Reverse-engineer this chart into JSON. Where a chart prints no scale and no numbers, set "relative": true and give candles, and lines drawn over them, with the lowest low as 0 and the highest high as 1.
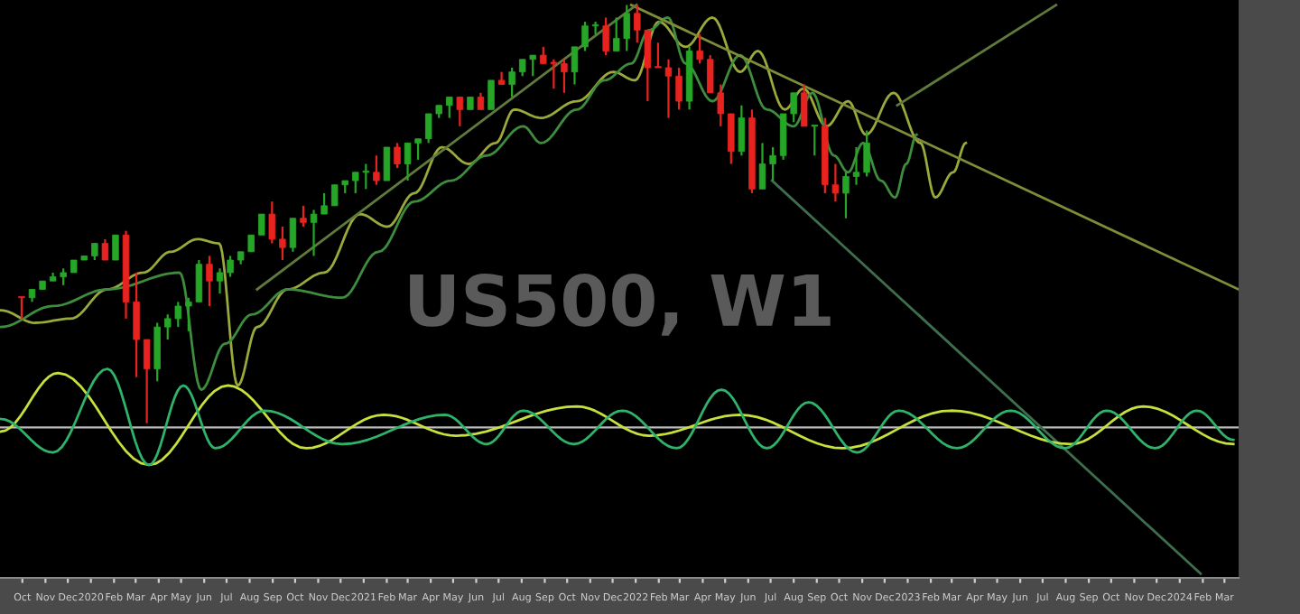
{
  "chart_data": {
    "type": "candlestick",
    "title": "US500, W1",
    "relative": true,
    "grid": false,
    "legend": false,
    "tick_labels": "x",
    "xlim": [
      "2019-09-01",
      "2024-03-20"
    ],
    "xticks": [
      {
        "value": "2019-10-01",
        "label": "Oct"
      },
      {
        "value": "2019-11-01",
        "label": "Nov"
      },
      {
        "value": "2019-12-01",
        "label": "Dec"
      },
      {
        "value": "2020-01-01",
        "label": "2020"
      },
      {
        "value": "2020-02-01",
        "label": "Feb"
      },
      {
        "value": "2020-03-01",
        "label": "Mar"
      },
      {
        "value": "2020-04-01",
        "label": "Apr"
      },
      {
        "value": "2020-05-01",
        "label": "May"
      },
      {
        "value": "2020-06-01",
        "label": "Jun"
      },
      {
        "value": "2020-07-01",
        "label": "Jul"
      },
      {
        "value": "2020-08-01",
        "label": "Aug"
      },
      {
        "value": "2020-09-01",
        "label": "Sep"
      },
      {
        "value": "2020-10-01",
        "label": "Oct"
      },
      {
        "value": "2020-11-01",
        "label": "Nov"
      },
      {
        "value": "2020-12-01",
        "label": "Dec"
      },
      {
        "value": "2021-01-01",
        "label": "2021"
      },
      {
        "value": "2021-02-01",
        "label": "Feb"
      },
      {
        "value": "2021-03-01",
        "label": "Mar"
      },
      {
        "value": "2021-04-01",
        "label": "Apr"
      },
      {
        "value": "2021-05-01",
        "label": "May"
      },
      {
        "value": "2021-06-01",
        "label": "Jun"
      },
      {
        "value": "2021-07-01",
        "label": "Jul"
      },
      {
        "value": "2021-08-01",
        "label": "Aug"
      },
      {
        "value": "2021-09-01",
        "label": "Sep"
      },
      {
        "value": "2021-10-01",
        "label": "Oct"
      },
      {
        "value": "2021-11-01",
        "label": "Nov"
      },
      {
        "value": "2021-12-01",
        "label": "Dec"
      },
      {
        "value": "2022-01-01",
        "label": "2022"
      },
      {
        "value": "2022-02-01",
        "label": "Feb"
      },
      {
        "value": "2022-03-01",
        "label": "Mar"
      },
      {
        "value": "2022-04-01",
        "label": "Apr"
      },
      {
        "value": "2022-05-01",
        "label": "May"
      },
      {
        "value": "2022-06-01",
        "label": "Jun"
      },
      {
        "value": "2022-07-01",
        "label": "Jul"
      },
      {
        "value": "2022-08-01",
        "label": "Aug"
      },
      {
        "value": "2022-09-01",
        "label": "Sep"
      },
      {
        "value": "2022-10-01",
        "label": "Oct"
      },
      {
        "value": "2022-11-01",
        "label": "Nov"
      },
      {
        "value": "2022-12-01",
        "label": "Dec"
      },
      {
        "value": "2023-01-01",
        "label": "2023"
      },
      {
        "value": "2023-02-01",
        "label": "Feb"
      },
      {
        "value": "2023-03-01",
        "label": "Mar"
      },
      {
        "value": "2023-04-01",
        "label": "Apr"
      },
      {
        "value": "2023-05-01",
        "label": "May"
      },
      {
        "value": "2023-06-01",
        "label": "Jun"
      },
      {
        "value": "2023-07-01",
        "label": "Jul"
      },
      {
        "value": "2023-08-01",
        "label": "Aug"
      },
      {
        "value": "2023-09-01",
        "label": "Sep"
      },
      {
        "value": "2023-10-01",
        "label": "Oct"
      },
      {
        "value": "2023-11-01",
        "label": "Nov"
      },
      {
        "value": "2023-12-01",
        "label": "Dec"
      },
      {
        "value": "2024-01-01",
        "label": "2024"
      },
      {
        "value": "2024-02-01",
        "label": "Feb"
      },
      {
        "value": "2024-03-01",
        "label": "Mar"
      }
    ],
    "x": [
      "2019-09-30",
      "2019-10-14",
      "2019-10-28",
      "2019-11-11",
      "2019-11-25",
      "2019-12-09",
      "2019-12-23",
      "2020-01-06",
      "2020-01-20",
      "2020-02-03",
      "2020-02-17",
      "2020-03-02",
      "2020-03-16",
      "2020-03-30",
      "2020-04-13",
      "2020-04-27",
      "2020-05-11",
      "2020-05-25",
      "2020-06-08",
      "2020-06-22",
      "2020-07-06",
      "2020-07-20",
      "2020-08-03",
      "2020-08-17",
      "2020-08-31",
      "2020-09-14",
      "2020-09-28",
      "2020-10-12",
      "2020-10-26",
      "2020-11-09",
      "2020-11-23",
      "2020-12-07",
      "2020-12-21",
      "2021-01-04",
      "2021-01-18",
      "2021-02-01",
      "2021-02-15",
      "2021-03-01",
      "2021-03-15",
      "2021-03-29",
      "2021-04-12",
      "2021-04-26",
      "2021-05-10",
      "2021-05-24",
      "2021-06-07",
      "2021-06-21",
      "2021-07-05",
      "2021-07-19",
      "2021-08-02",
      "2021-08-16",
      "2021-08-30",
      "2021-09-13",
      "2021-09-27",
      "2021-10-11",
      "2021-10-25",
      "2021-11-08",
      "2021-11-22",
      "2021-12-06",
      "2021-12-20",
      "2022-01-03",
      "2022-01-17",
      "2022-01-31",
      "2022-02-14",
      "2022-02-28",
      "2022-03-14",
      "2022-03-28",
      "2022-04-11",
      "2022-04-25",
      "2022-05-09",
      "2022-05-23",
      "2022-06-06",
      "2022-06-20",
      "2022-07-04",
      "2022-07-18",
      "2022-08-01",
      "2022-08-15",
      "2022-08-29",
      "2022-09-12",
      "2022-09-26",
      "2022-10-10",
      "2022-10-24",
      "2022-11-07"
    ],
    "ohlc": [
      [
        0.3,
        0.3,
        0.25,
        0.3
      ],
      [
        0.3,
        0.32,
        0.29,
        0.32
      ],
      [
        0.32,
        0.34,
        0.32,
        0.34
      ],
      [
        0.34,
        0.36,
        0.34,
        0.35
      ],
      [
        0.35,
        0.37,
        0.33,
        0.36
      ],
      [
        0.36,
        0.39,
        0.36,
        0.39
      ],
      [
        0.39,
        0.4,
        0.39,
        0.4
      ],
      [
        0.4,
        0.43,
        0.39,
        0.43
      ],
      [
        0.43,
        0.44,
        0.39,
        0.39
      ],
      [
        0.39,
        0.45,
        0.39,
        0.45
      ],
      [
        0.45,
        0.46,
        0.25,
        0.29
      ],
      [
        0.29,
        0.36,
        0.11,
        0.2
      ],
      [
        0.2,
        0.2,
        0.0,
        0.13
      ],
      [
        0.13,
        0.24,
        0.1,
        0.23
      ],
      [
        0.23,
        0.26,
        0.2,
        0.25
      ],
      [
        0.25,
        0.29,
        0.23,
        0.28
      ],
      [
        0.28,
        0.3,
        0.22,
        0.29
      ],
      [
        0.29,
        0.39,
        0.29,
        0.38
      ],
      [
        0.38,
        0.4,
        0.28,
        0.34
      ],
      [
        0.34,
        0.37,
        0.31,
        0.36
      ],
      [
        0.36,
        0.4,
        0.35,
        0.39
      ],
      [
        0.39,
        0.41,
        0.38,
        0.41
      ],
      [
        0.41,
        0.45,
        0.41,
        0.45
      ],
      [
        0.45,
        0.5,
        0.45,
        0.5
      ],
      [
        0.5,
        0.53,
        0.43,
        0.44
      ],
      [
        0.44,
        0.47,
        0.39,
        0.42
      ],
      [
        0.42,
        0.49,
        0.41,
        0.49
      ],
      [
        0.49,
        0.52,
        0.47,
        0.48
      ],
      [
        0.48,
        0.51,
        0.4,
        0.5
      ],
      [
        0.5,
        0.55,
        0.5,
        0.52
      ],
      [
        0.52,
        0.57,
        0.52,
        0.57
      ],
      [
        0.57,
        0.58,
        0.55,
        0.58
      ],
      [
        0.58,
        0.6,
        0.55,
        0.6
      ],
      [
        0.6,
        0.62,
        0.56,
        0.6
      ],
      [
        0.6,
        0.64,
        0.57,
        0.58
      ],
      [
        0.58,
        0.66,
        0.58,
        0.66
      ],
      [
        0.66,
        0.67,
        0.61,
        0.62
      ],
      [
        0.62,
        0.67,
        0.58,
        0.67
      ],
      [
        0.67,
        0.68,
        0.63,
        0.68
      ],
      [
        0.68,
        0.74,
        0.67,
        0.74
      ],
      [
        0.74,
        0.76,
        0.73,
        0.76
      ],
      [
        0.76,
        0.78,
        0.73,
        0.78
      ],
      [
        0.78,
        0.78,
        0.71,
        0.75
      ],
      [
        0.75,
        0.78,
        0.75,
        0.78
      ],
      [
        0.78,
        0.79,
        0.75,
        0.75
      ],
      [
        0.75,
        0.82,
        0.75,
        0.82
      ],
      [
        0.82,
        0.84,
        0.81,
        0.81
      ],
      [
        0.81,
        0.85,
        0.78,
        0.84
      ],
      [
        0.84,
        0.87,
        0.83,
        0.87
      ],
      [
        0.87,
        0.88,
        0.83,
        0.88
      ],
      [
        0.88,
        0.9,
        0.86,
        0.86
      ],
      [
        0.86,
        0.87,
        0.8,
        0.86
      ],
      [
        0.86,
        0.87,
        0.79,
        0.84
      ],
      [
        0.84,
        0.9,
        0.81,
        0.9
      ],
      [
        0.9,
        0.96,
        0.89,
        0.95
      ],
      [
        0.95,
        0.96,
        0.93,
        0.95
      ],
      [
        0.95,
        0.97,
        0.88,
        0.89
      ],
      [
        0.89,
        0.97,
        0.89,
        0.92
      ],
      [
        0.92,
        1.0,
        0.89,
        0.98
      ],
      [
        0.98,
        1.0,
        0.91,
        0.94
      ],
      [
        0.94,
        0.94,
        0.77,
        0.85
      ],
      [
        0.85,
        0.91,
        0.85,
        0.85
      ],
      [
        0.85,
        0.87,
        0.73,
        0.83
      ],
      [
        0.83,
        0.85,
        0.75,
        0.77
      ],
      [
        0.77,
        0.9,
        0.75,
        0.89
      ],
      [
        0.89,
        0.93,
        0.86,
        0.87
      ],
      [
        0.87,
        0.88,
        0.79,
        0.79
      ],
      [
        0.79,
        0.81,
        0.71,
        0.74
      ],
      [
        0.74,
        0.74,
        0.62,
        0.65
      ],
      [
        0.65,
        0.76,
        0.64,
        0.73
      ],
      [
        0.73,
        0.75,
        0.55,
        0.56
      ],
      [
        0.56,
        0.67,
        0.56,
        0.62
      ],
      [
        0.62,
        0.66,
        0.58,
        0.64
      ],
      [
        0.64,
        0.74,
        0.63,
        0.74
      ],
      [
        0.74,
        0.79,
        0.72,
        0.79
      ],
      [
        0.79,
        0.81,
        0.71,
        0.71
      ],
      [
        0.71,
        0.71,
        0.64,
        0.71
      ],
      [
        0.71,
        0.73,
        0.55,
        0.57
      ],
      [
        0.57,
        0.62,
        0.53,
        0.55
      ],
      [
        0.55,
        0.6,
        0.49,
        0.59
      ],
      [
        0.59,
        0.66,
        0.57,
        0.6
      ],
      [
        0.6,
        0.7,
        0.59,
        0.67
      ]
    ],
    "colors": [
      "#e8231f",
      "#26a626",
      "#26a626",
      "#26a626",
      "#26a626",
      "#26a626",
      "#26a626",
      "#26a626",
      "#e8231f",
      "#26a626",
      "#e8231f",
      "#e8231f",
      "#e8231f",
      "#26a626",
      "#26a626",
      "#26a626",
      "#26a626",
      "#26a626",
      "#e8231f",
      "#26a626",
      "#26a626",
      "#26a626",
      "#26a626",
      "#26a626",
      "#e8231f",
      "#e8231f",
      "#26a626",
      "#e8231f",
      "#26a626",
      "#26a626",
      "#26a626",
      "#26a626",
      "#26a626",
      "#26a626",
      "#e8231f",
      "#26a626",
      "#e8231f",
      "#26a626",
      "#26a626",
      "#26a626",
      "#26a626",
      "#26a626",
      "#e8231f",
      "#26a626",
      "#e8231f",
      "#26a626",
      "#e8231f",
      "#26a626",
      "#26a626",
      "#26a626",
      "#e8231f",
      "#e8231f",
      "#e8231f",
      "#26a626",
      "#26a626",
      "#26a626",
      "#e8231f",
      "#26a626",
      "#26a626",
      "#e8231f",
      "#e8231f",
      "#e8231f",
      "#e8231f",
      "#e8231f",
      "#26a626",
      "#e8231f",
      "#e8231f",
      "#e8231f",
      "#e8231f",
      "#26a626",
      "#e8231f",
      "#26a626",
      "#26a626",
      "#26a626",
      "#26a626",
      "#e8231f",
      "#26a626",
      "#e8231f",
      "#e8231f",
      "#26a626",
      "#26a626",
      "#26a626"
    ],
    "ref_lines": [
      {
        "axis": "y",
        "value": -0.01,
        "color": "#bbbbbb"
      }
    ],
    "series": [
      {
        "type": "line",
        "color": "#9aa83c",
        "x": [
          "2019-09-02",
          "2019-10-18",
          "2019-12-05",
          "2020-01-23",
          "2020-03-11",
          "2020-04-17",
          "2020-05-23",
          "2020-06-21",
          "2020-07-16",
          "2020-08-11",
          "2020-09-21",
          "2020-11-09",
          "2020-12-27",
          "2021-02-02",
          "2021-03-10",
          "2021-04-16",
          "2021-05-22",
          "2021-06-27",
          "2021-07-22",
          "2021-08-27",
          "2021-10-14",
          "2021-12-02",
          "2021-12-31",
          "2022-02-01",
          "2022-03-09",
          "2022-04-14",
          "2022-05-21",
          "2022-06-14",
          "2022-07-20",
          "2022-08-14",
          "2022-09-14",
          "2022-10-13",
          "2022-11-06",
          "2022-12-13",
          "2023-01-18",
          "2023-02-07",
          "2023-03-03",
          "2023-03-20"
        ],
        "values": [
          0.27,
          0.24,
          0.25,
          0.32,
          0.36,
          0.41,
          0.44,
          0.43,
          0.09,
          0.23,
          0.32,
          0.36,
          0.5,
          0.47,
          0.55,
          0.66,
          0.62,
          0.67,
          0.75,
          0.73,
          0.77,
          0.84,
          0.82,
          0.96,
          0.9,
          0.97,
          0.84,
          0.89,
          0.75,
          0.8,
          0.71,
          0.77,
          0.69,
          0.79,
          0.67,
          0.54,
          0.6,
          0.67
        ]
      },
      {
        "type": "line",
        "color": "#3e8c3e",
        "x": [
          "2019-09-02",
          "2019-11-11",
          "2020-01-23",
          "2020-04-29",
          "2020-05-28",
          "2020-06-29",
          "2020-08-04",
          "2020-09-21",
          "2020-12-03",
          "2021-01-21",
          "2021-03-10",
          "2021-04-28",
          "2021-06-15",
          "2021-08-03",
          "2021-08-27",
          "2021-10-14",
          "2021-11-20",
          "2021-12-26",
          "2022-01-19",
          "2022-02-13",
          "2022-03-09",
          "2022-04-14",
          "2022-05-21",
          "2022-06-26",
          "2022-08-01",
          "2022-08-26",
          "2022-09-24",
          "2022-10-13",
          "2022-11-02",
          "2022-11-26",
          "2022-12-15",
          "2022-12-30",
          "2023-01-13"
        ],
        "values": [
          0.23,
          0.28,
          0.32,
          0.36,
          0.08,
          0.19,
          0.26,
          0.32,
          0.3,
          0.41,
          0.53,
          0.58,
          0.64,
          0.71,
          0.67,
          0.75,
          0.82,
          0.86,
          0.94,
          0.97,
          0.86,
          0.77,
          0.88,
          0.75,
          0.71,
          0.79,
          0.64,
          0.6,
          0.67,
          0.58,
          0.54,
          0.62,
          0.69
        ]
      },
      {
        "type": "line",
        "color": "#7f8c3a",
        "x": [
          "2021-12-26",
          "2024-03-20"
        ],
        "values": [
          1.0,
          0.32
        ]
      },
      {
        "type": "line",
        "color": "#3e6e4e",
        "x": [
          "2022-07-03",
          "2024-01-29"
        ],
        "values": [
          0.58,
          -0.36
        ]
      },
      {
        "type": "line",
        "color": "#5f7a3a",
        "x": [
          "2022-12-18",
          "2023-07-19"
        ],
        "values": [
          0.76,
          1.0
        ]
      },
      {
        "type": "line",
        "color": "#5f7a3a",
        "x": [
          "2020-08-11",
          "2022-01-02"
        ],
        "values": [
          0.32,
          1.0
        ]
      },
      {
        "type": "line",
        "color": "#c8e03c",
        "x": [
          "2019-09-02",
          "2019-11-18",
          "2020-03-19",
          "2020-07-03",
          "2020-10-16",
          "2021-01-28",
          "2021-05-05",
          "2021-10-14",
          "2022-01-19",
          "2022-05-21",
          "2022-10-06",
          "2023-02-28",
          "2023-08-08",
          "2023-11-13",
          "2024-03-13"
        ],
        "values": [
          -0.02,
          0.12,
          -0.1,
          0.09,
          -0.06,
          0.02,
          -0.03,
          0.04,
          -0.03,
          0.02,
          -0.06,
          0.03,
          -0.05,
          0.04,
          -0.05
        ]
      },
      {
        "type": "line",
        "color": "#2fb36a",
        "x": [
          "2019-09-02",
          "2019-11-11",
          "2020-01-23",
          "2020-03-19",
          "2020-05-04",
          "2020-06-16",
          "2020-08-21",
          "2020-12-03",
          "2021-04-20",
          "2021-06-15",
          "2021-08-03",
          "2021-10-10",
          "2021-12-14",
          "2022-02-25",
          "2022-04-26",
          "2022-06-26",
          "2022-08-21",
          "2022-10-25",
          "2022-12-20",
          "2023-03-08",
          "2023-05-19",
          "2023-07-31",
          "2023-09-25",
          "2023-11-29",
          "2024-01-24",
          "2024-03-13"
        ],
        "values": [
          0.01,
          -0.07,
          0.13,
          -0.1,
          0.09,
          -0.06,
          0.03,
          -0.05,
          0.02,
          -0.05,
          0.03,
          -0.05,
          0.03,
          -0.06,
          0.08,
          -0.06,
          0.05,
          -0.07,
          0.03,
          -0.06,
          0.03,
          -0.06,
          0.03,
          -0.06,
          0.03,
          -0.04
        ]
      }
    ]
  }
}
